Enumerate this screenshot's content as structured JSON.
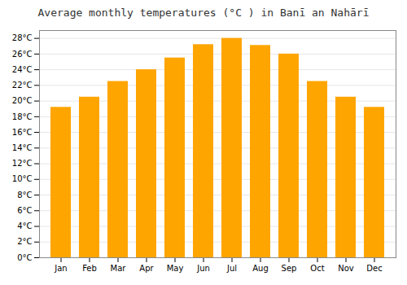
{
  "chart_data": {
    "type": "bar",
    "title": "Average monthly temperatures (°C ) in Banī an Nahārī",
    "categories": [
      "Jan",
      "Feb",
      "Mar",
      "Apr",
      "May",
      "Jun",
      "Jul",
      "Aug",
      "Sep",
      "Oct",
      "Nov",
      "Dec"
    ],
    "values": [
      19.2,
      20.5,
      22.5,
      24.0,
      25.5,
      27.2,
      28.0,
      27.1,
      26.0,
      22.5,
      20.5,
      19.2
    ],
    "color": "#FFA500",
    "ylim": [
      0,
      29
    ],
    "yticks": [
      {
        "value": 0,
        "label": "0°C"
      },
      {
        "value": 2,
        "label": "2°C"
      },
      {
        "value": 4,
        "label": "4°C"
      },
      {
        "value": 6,
        "label": "6°C"
      },
      {
        "value": 8,
        "label": "8°C"
      },
      {
        "value": 10,
        "label": "10°C"
      },
      {
        "value": 12,
        "label": "12°C"
      },
      {
        "value": 14,
        "label": "14°C"
      },
      {
        "value": 16,
        "label": "16°C"
      },
      {
        "value": 18,
        "label": "18°C"
      },
      {
        "value": 20,
        "label": "20°C"
      },
      {
        "value": 22,
        "label": "22°C"
      },
      {
        "value": 24,
        "label": "24°C"
      },
      {
        "value": 26,
        "label": "26°C"
      },
      {
        "value": 28,
        "label": "28°C"
      }
    ],
    "grid": true
  }
}
